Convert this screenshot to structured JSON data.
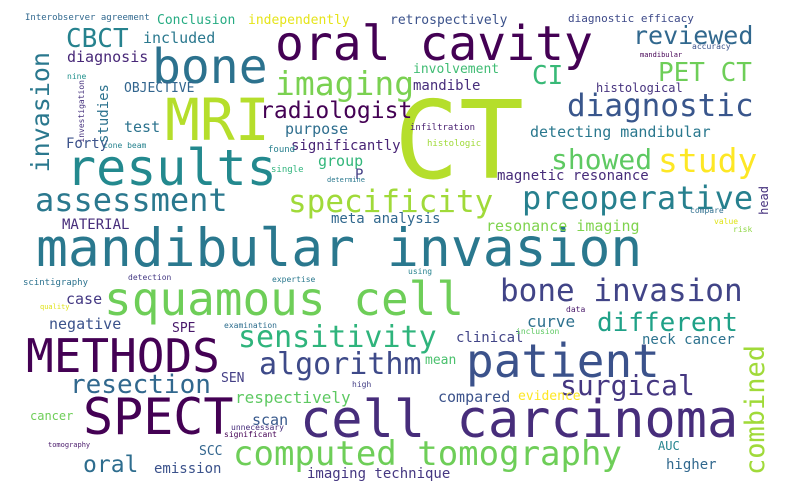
{
  "words": [
    {
      "text": "CT",
      "color": "#b5de2b"
    },
    {
      "text": "mandibular invasion",
      "color": "#2a788e"
    },
    {
      "text": "cell carcinoma",
      "color": "#472d7b"
    },
    {
      "text": "squamous cell",
      "color": "#6ece58"
    },
    {
      "text": "MRI",
      "color": "#b5de2b"
    },
    {
      "text": "oral cavity",
      "color": "#440154"
    },
    {
      "text": "bone",
      "color": "#2c728e"
    },
    {
      "text": "results",
      "color": "#23898e"
    },
    {
      "text": "patient",
      "color": "#3b528b"
    },
    {
      "text": "SPECT",
      "color": "#440154"
    },
    {
      "text": "METHODS",
      "color": "#440154"
    },
    {
      "text": "computed tomography",
      "color": "#6ece58"
    },
    {
      "text": "bone invasion",
      "color": "#414487"
    },
    {
      "text": "preoperative",
      "color": "#27808e"
    },
    {
      "text": "specificity",
      "color": "#a0da39"
    },
    {
      "text": "assessment",
      "color": "#2a788e"
    },
    {
      "text": "study",
      "color": "#fde725"
    },
    {
      "text": "diagnostic",
      "color": "#39568c"
    },
    {
      "text": "imaging",
      "color": "#7ad151"
    },
    {
      "text": "showed",
      "color": "#5ec962"
    },
    {
      "text": "sensitivity",
      "color": "#2fb47c"
    },
    {
      "text": "algorithm",
      "color": "#3e4a89"
    },
    {
      "text": "different",
      "color": "#1fa187"
    },
    {
      "text": "resection",
      "color": "#31688e"
    },
    {
      "text": "surgical",
      "color": "#453781"
    },
    {
      "text": "combined",
      "color": "#a0da39"
    },
    {
      "text": "invasion",
      "color": "#2a788e"
    },
    {
      "text": "radiologist",
      "color": "#440154"
    },
    {
      "text": "reviewed",
      "color": "#31688e"
    },
    {
      "text": "PET CT",
      "color": "#6ece58"
    },
    {
      "text": "CBCT",
      "color": "#26828e"
    },
    {
      "text": "CI",
      "color": "#38b977"
    },
    {
      "text": "oral",
      "color": "#2e6d8e"
    },
    {
      "text": "emission",
      "color": "#3b528b"
    },
    {
      "text": "imaging technique",
      "color": "#453781"
    },
    {
      "text": "higher",
      "color": "#31688e"
    },
    {
      "text": "scan",
      "color": "#38598c"
    },
    {
      "text": "respectively",
      "color": "#5ec962"
    },
    {
      "text": "compared",
      "color": "#3b528b"
    },
    {
      "text": "evidence",
      "color": "#fde725"
    },
    {
      "text": "curve",
      "color": "#2d708e"
    },
    {
      "text": "clinical",
      "color": "#414487"
    },
    {
      "text": "mean",
      "color": "#4ac16d"
    },
    {
      "text": "neck cancer",
      "color": "#2c728e"
    },
    {
      "text": "case",
      "color": "#443983"
    },
    {
      "text": "negative",
      "color": "#3b528b"
    },
    {
      "text": "SPE",
      "color": "#48186a"
    },
    {
      "text": "SEN",
      "color": "#433e85"
    },
    {
      "text": "SCC",
      "color": "#32658e"
    },
    {
      "text": "cancer",
      "color": "#6ece58"
    },
    {
      "text": "AUC",
      "color": "#25848e"
    },
    {
      "text": "magnetic resonance",
      "color": "#472c7a"
    },
    {
      "text": "resonance imaging",
      "color": "#7fd34e"
    },
    {
      "text": "meta analysis",
      "color": "#31688e"
    },
    {
      "text": "MATERIAL",
      "color": "#472d7b"
    },
    {
      "text": "group",
      "color": "#32b67a"
    },
    {
      "text": "P",
      "color": "#433e85"
    },
    {
      "text": "significantly",
      "color": "#482475"
    },
    {
      "text": "purpose",
      "color": "#2e6e8e"
    },
    {
      "text": "test",
      "color": "#2c738e"
    },
    {
      "text": "Forty",
      "color": "#3b528b"
    },
    {
      "text": "studies",
      "color": "#2c728e"
    },
    {
      "text": "OBJECTIVE",
      "color": "#32658e"
    },
    {
      "text": "diagnosis",
      "color": "#482878"
    },
    {
      "text": "included",
      "color": "#2a788e"
    },
    {
      "text": "Conclusion",
      "color": "#25ab82"
    },
    {
      "text": "independently",
      "color": "#e5e419"
    },
    {
      "text": "retrospectively",
      "color": "#3b528b"
    },
    {
      "text": "diagnostic efficacy",
      "color": "#3e4a89"
    },
    {
      "text": "Interobserver agreement",
      "color": "#31688e"
    },
    {
      "text": "involvement",
      "color": "#3fbc73"
    },
    {
      "text": "mandible",
      "color": "#472d7b"
    },
    {
      "text": "histological",
      "color": "#46327e"
    },
    {
      "text": "detecting mandibular",
      "color": "#2a788e"
    },
    {
      "text": "infiltration",
      "color": "#481f70"
    },
    {
      "text": "histologic",
      "color": "#a0da39"
    },
    {
      "text": "head",
      "color": "#46327e"
    },
    {
      "text": "compare",
      "color": "#2e6e8e"
    },
    {
      "text": "value",
      "color": "#dfe318"
    },
    {
      "text": "risk",
      "color": "#8fd744"
    },
    {
      "text": "found",
      "color": "#27808e"
    },
    {
      "text": "single",
      "color": "#2fb47c"
    },
    {
      "text": "determine",
      "color": "#2a788e"
    },
    {
      "text": "cone beam",
      "color": "#26828e"
    },
    {
      "text": "nine",
      "color": "#21918c"
    },
    {
      "text": "investigation",
      "color": "#46327e"
    },
    {
      "text": "mandibular",
      "color": "#440154"
    },
    {
      "text": "accuracy",
      "color": "#3b528b"
    },
    {
      "text": "detection",
      "color": "#443983"
    },
    {
      "text": "expertise",
      "color": "#2a788e"
    },
    {
      "text": "using",
      "color": "#26828e"
    },
    {
      "text": "scintigraphy",
      "color": "#2c728e"
    },
    {
      "text": "quality",
      "color": "#dfe318"
    },
    {
      "text": "examination",
      "color": "#2e6e8e"
    },
    {
      "text": "inclusion",
      "color": "#5ec962"
    },
    {
      "text": "data",
      "color": "#48186a"
    },
    {
      "text": "high",
      "color": "#433e85"
    },
    {
      "text": "unnecessary",
      "color": "#472d7b"
    },
    {
      "text": "significant",
      "color": "#440154"
    },
    {
      "text": "tomography",
      "color": "#48186a"
    }
  ]
}
